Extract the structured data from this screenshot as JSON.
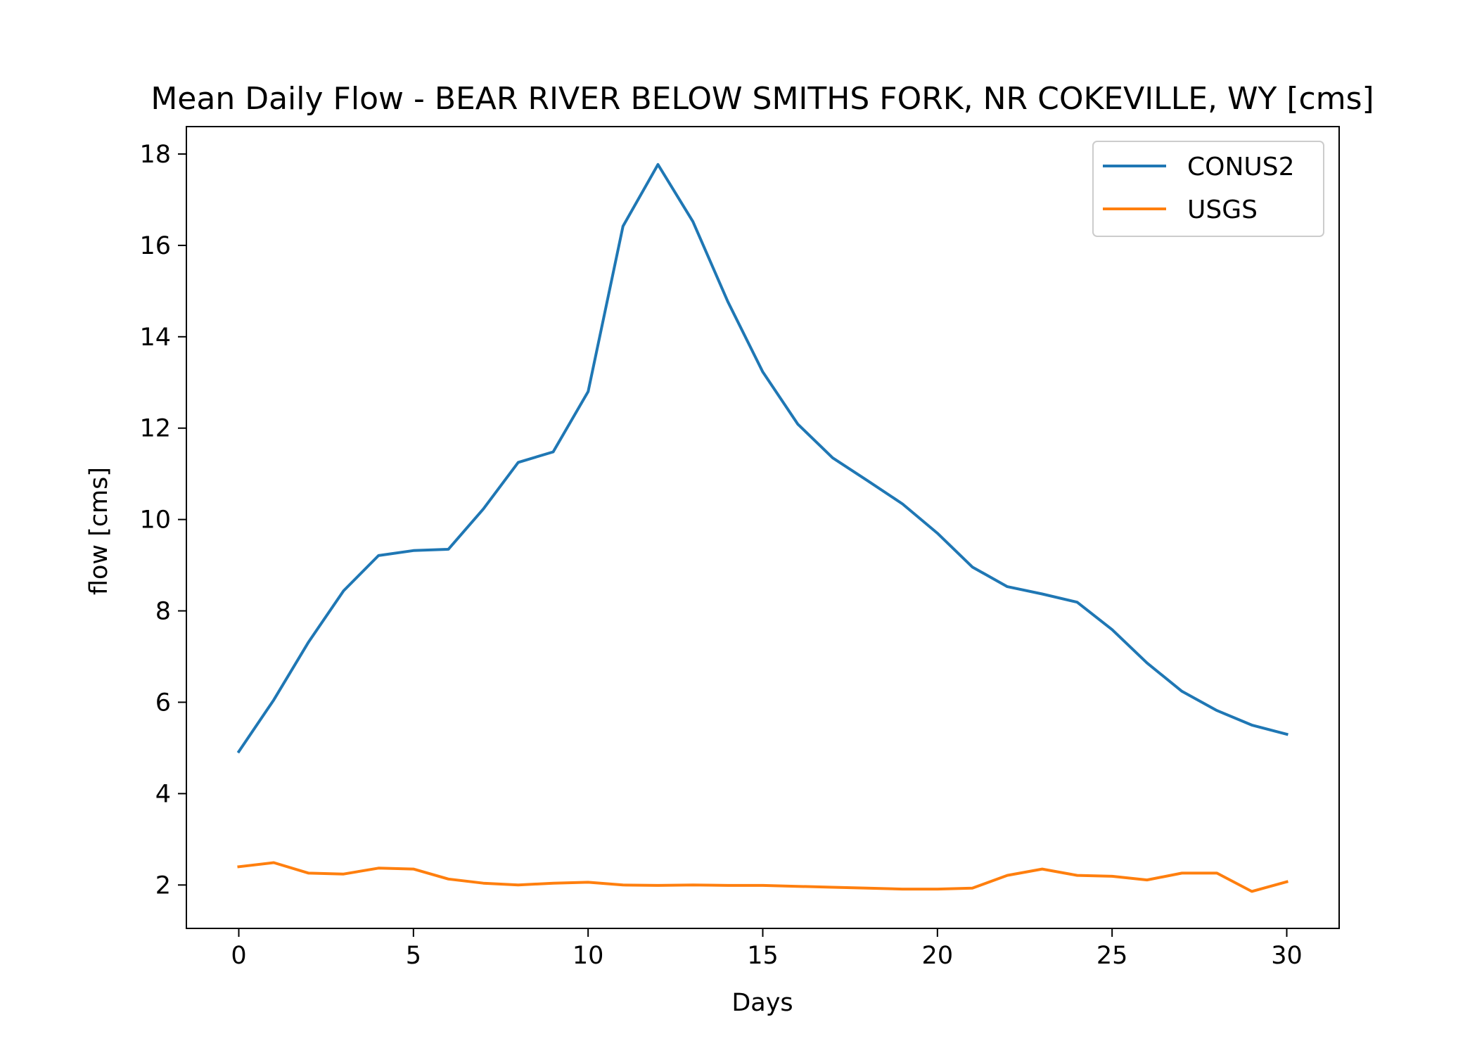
{
  "chart_data": {
    "type": "line",
    "title": "Mean Daily Flow - BEAR RIVER BELOW SMITHS FORK, NR COKEVILLE, WY [cms]",
    "xlabel": "Days",
    "ylabel": "flow [cms]",
    "xlim": [
      -1.5,
      31.5
    ],
    "ylim": [
      1.05,
      18.6
    ],
    "xticks": [
      0,
      5,
      10,
      15,
      20,
      25,
      30
    ],
    "yticks": [
      2,
      4,
      6,
      8,
      10,
      12,
      14,
      16,
      18
    ],
    "grid": false,
    "legend_position": "top-right",
    "x": [
      0,
      1,
      2,
      3,
      4,
      5,
      6,
      7,
      8,
      9,
      10,
      11,
      12,
      13,
      14,
      15,
      16,
      17,
      18,
      19,
      20,
      21,
      22,
      23,
      24,
      25,
      26,
      27,
      28,
      29,
      30
    ],
    "series": [
      {
        "name": "CONUS2",
        "color": "#1f77b4",
        "values": [
          4.92,
          6.05,
          7.32,
          8.44,
          9.21,
          9.32,
          9.35,
          10.23,
          11.25,
          11.48,
          12.8,
          16.42,
          17.77,
          16.52,
          14.77,
          13.23,
          12.09,
          11.35,
          10.85,
          10.34,
          9.7,
          8.96,
          8.53,
          8.37,
          8.19,
          7.59,
          6.86,
          6.24,
          5.82,
          5.5,
          5.3
        ]
      },
      {
        "name": "USGS",
        "color": "#ff7f0e",
        "values": [
          2.4,
          2.49,
          2.26,
          2.24,
          2.37,
          2.35,
          2.13,
          2.04,
          2.0,
          2.04,
          2.06,
          2.0,
          1.99,
          2.0,
          1.99,
          1.99,
          1.97,
          1.95,
          1.93,
          1.91,
          1.91,
          1.93,
          2.21,
          2.35,
          2.21,
          2.19,
          2.11,
          2.26,
          2.26,
          1.86,
          2.07
        ]
      }
    ]
  }
}
